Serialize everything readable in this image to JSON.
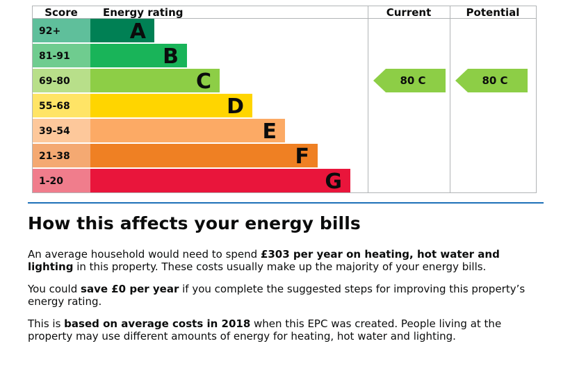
{
  "chart_data": {
    "type": "bar",
    "columns": {
      "score": "Score",
      "rating": "Energy rating",
      "current": "Current",
      "potential": "Potential"
    },
    "bands": [
      {
        "score": "92+",
        "letter": "A",
        "color": "#008054",
        "score_color": "#5fbf9b"
      },
      {
        "score": "81-91",
        "letter": "B",
        "color": "#19b459",
        "score_color": "#6fcc8f"
      },
      {
        "score": "69-80",
        "letter": "C",
        "color": "#8dce46",
        "score_color": "#b8df8a"
      },
      {
        "score": "55-68",
        "letter": "D",
        "color": "#ffd500",
        "score_color": "#ffe466"
      },
      {
        "score": "39-54",
        "letter": "E",
        "color": "#fcaa65",
        "score_color": "#fdc89b"
      },
      {
        "score": "21-38",
        "letter": "F",
        "color": "#ef8023",
        "score_color": "#f4a972"
      },
      {
        "score": "1-20",
        "letter": "G",
        "color": "#e9153b",
        "score_color": "#f07d8c"
      }
    ],
    "current": {
      "value": 80,
      "band": "C",
      "label": "80  C"
    },
    "potential": {
      "value": 80,
      "band": "C",
      "label": "80  C"
    }
  },
  "bills": {
    "heading": "How this affects your energy bills",
    "p1_pre": "An average household would need to spend ",
    "p1_bold": "£303 per year on heating, hot water and lighting",
    "p1_post": " in this property. These costs usually make up the majority of your energy bills.",
    "p2_pre": "You could ",
    "p2_bold": "save £0 per year",
    "p2_post": " if you complete the suggested steps for improving this property’s energy rating.",
    "p3_pre": "This is ",
    "p3_bold": "based on average costs in 2018",
    "p3_post": " when this EPC was created. People living at the property may use different amounts of energy for heating, hot water and lighting."
  }
}
